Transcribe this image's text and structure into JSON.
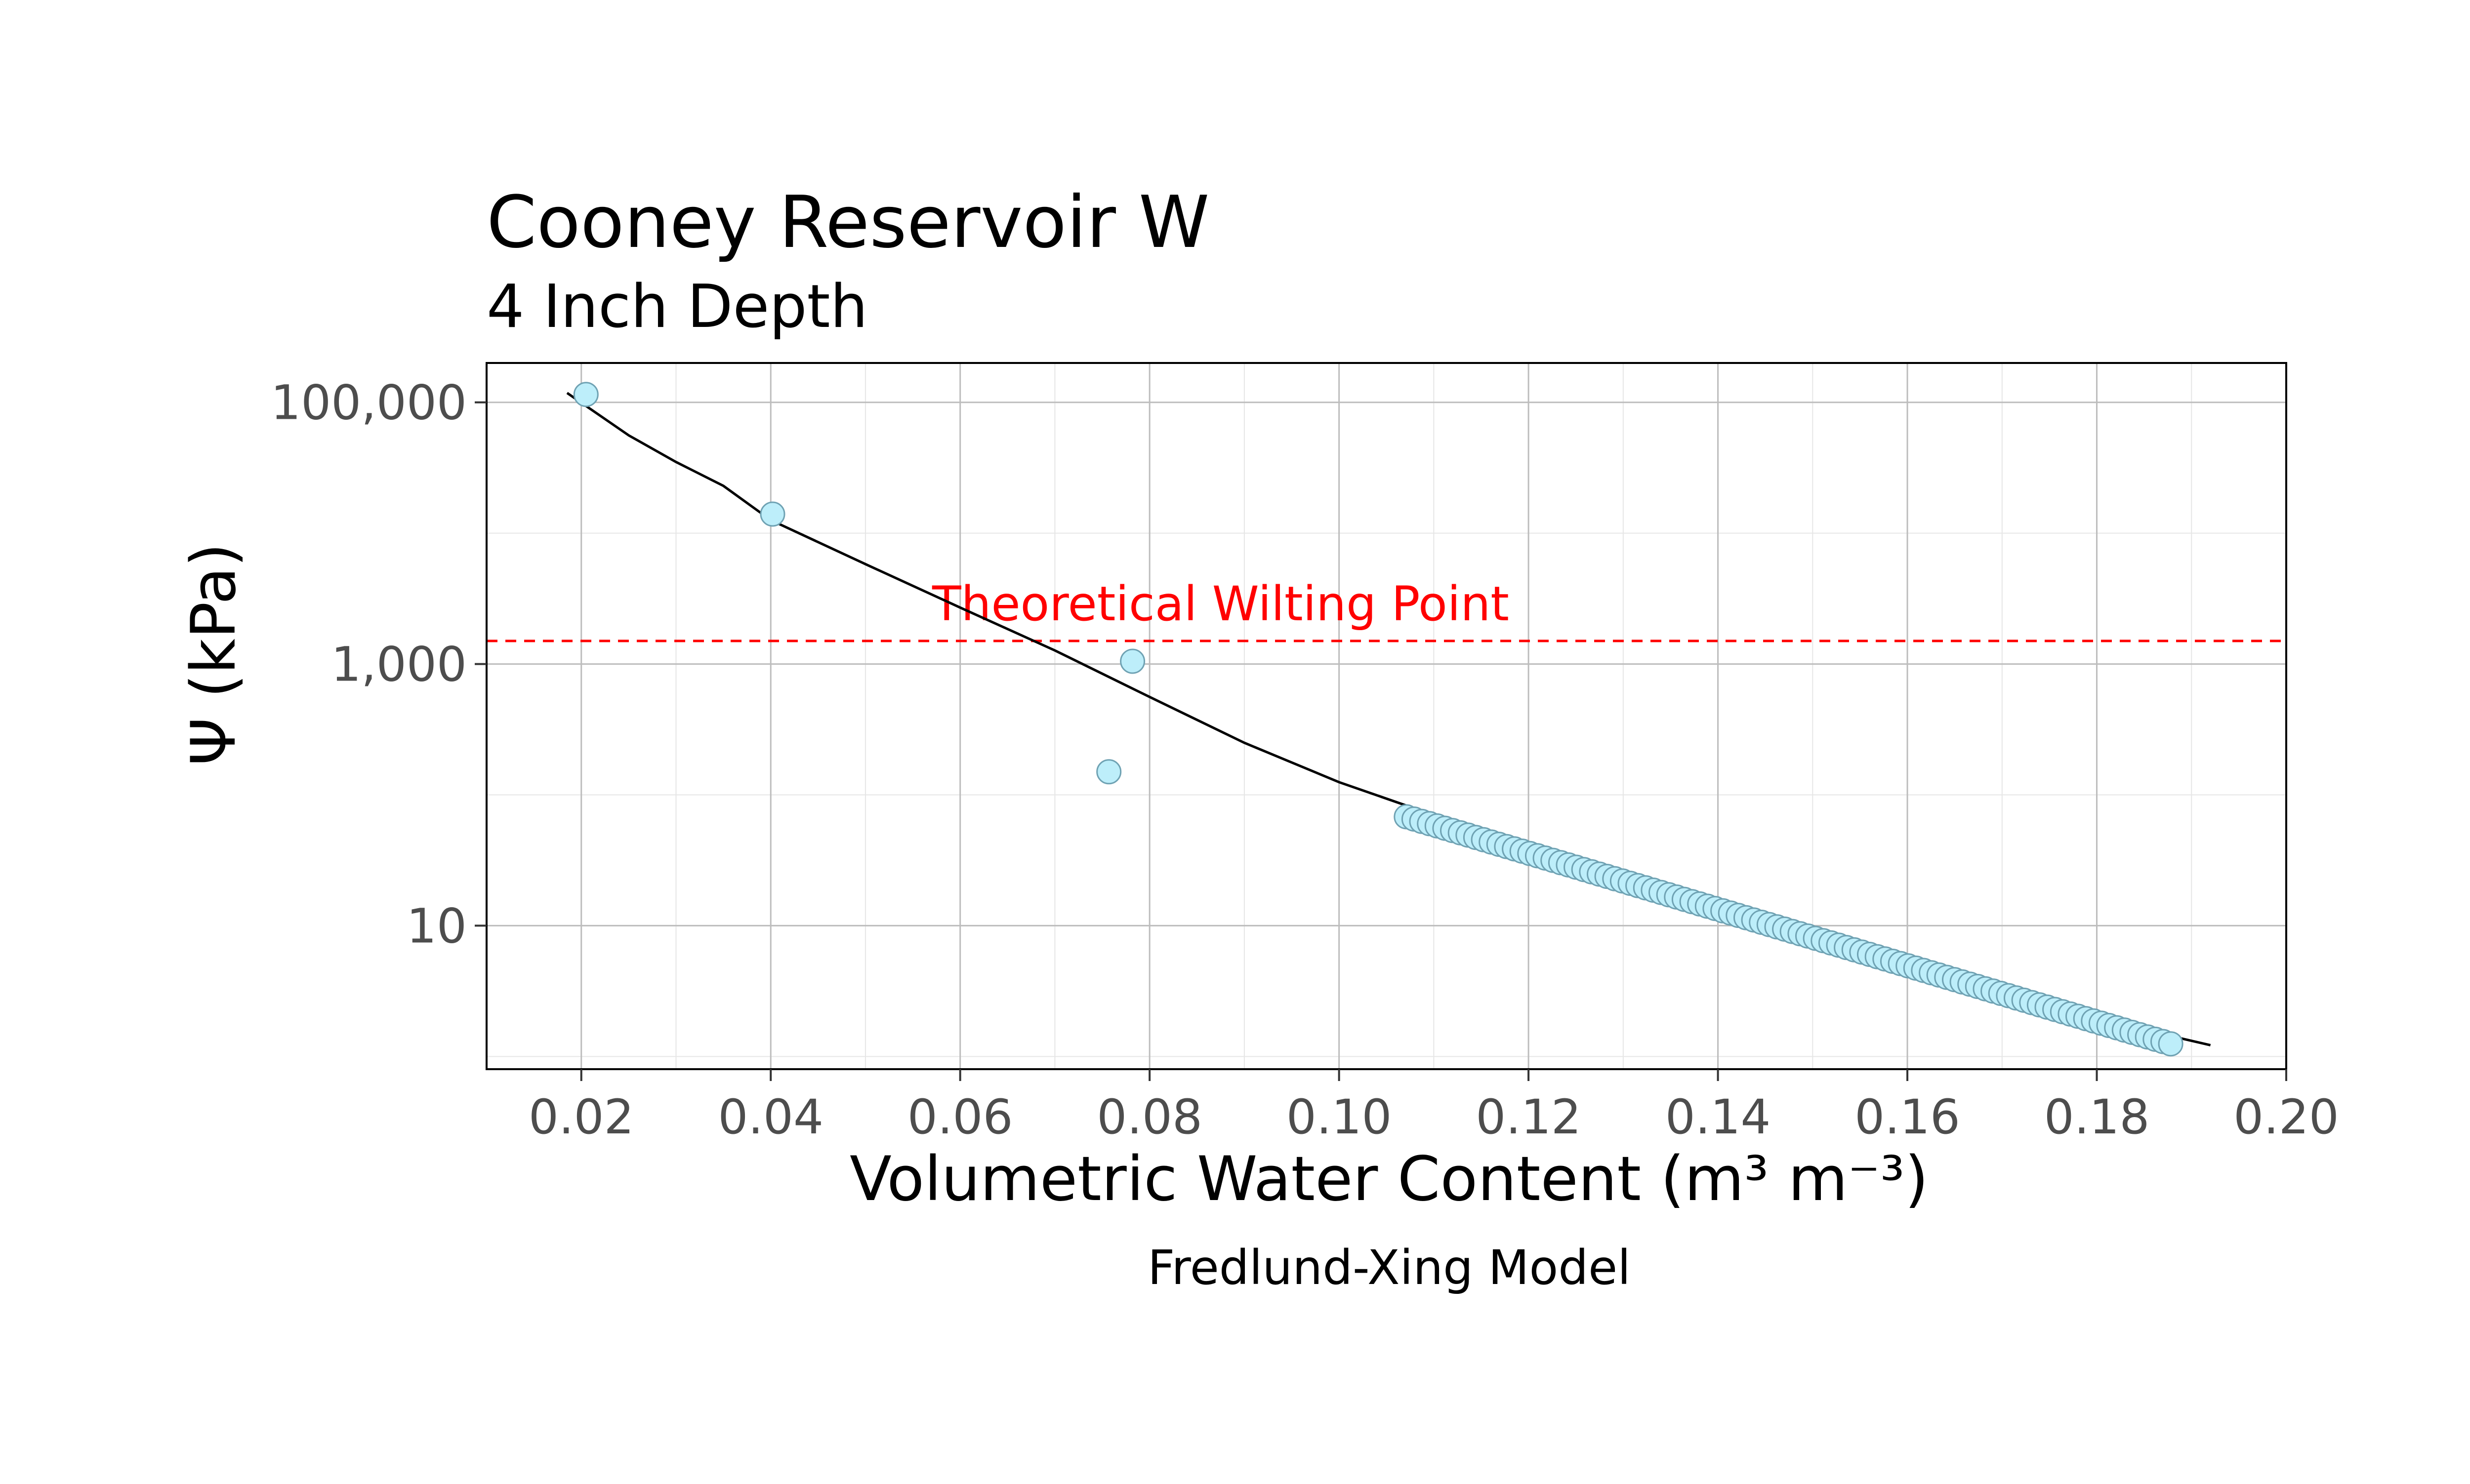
{
  "chart_data": {
    "type": "scatter",
    "title": "Cooney Reservoir W",
    "subtitle": "4 Inch Depth",
    "xlabel": "Volumetric Water Content (m³ m⁻³)",
    "ylabel": "Ψ (kPa)",
    "caption": "Fredlund-Xing Model",
    "x_scale": "linear",
    "y_scale": "log10",
    "xlim": [
      0.01,
      0.2
    ],
    "ylim": [
      0.8,
      200000
    ],
    "x_ticks": [
      0.02,
      0.04,
      0.06,
      0.08,
      0.1,
      0.12,
      0.14,
      0.16,
      0.18,
      0.2
    ],
    "x_tick_labels": [
      "0.02",
      "0.04",
      "0.06",
      "0.08",
      "0.10",
      "0.12",
      "0.14",
      "0.16",
      "0.18",
      "0.20"
    ],
    "y_ticks": [
      10,
      1000,
      100000
    ],
    "y_tick_labels": [
      "10",
      "1,000",
      "100,000"
    ],
    "y_minor_ticks": [
      1,
      100,
      10000
    ],
    "grid": true,
    "colors": {
      "point_fill": "#bdeefa",
      "point_stroke": "#6fa2b3",
      "fit_line": "#000000",
      "reference_line": "#ff0000",
      "annotation_text": "#ff0000"
    },
    "reference_line": {
      "y": 1500,
      "label": "Theoretical Wilting Point",
      "style": "dashed"
    },
    "observed_points": [
      {
        "x": 0.0205,
        "y": 115000
      },
      {
        "x": 0.0402,
        "y": 14000
      },
      {
        "x": 0.0782,
        "y": 1050
      },
      {
        "x": 0.0757,
        "y": 150
      }
    ],
    "dense_series": {
      "x_start": 0.1071,
      "x_end": 0.1878,
      "y_start": 68,
      "y_end": 1.25,
      "count": 100
    },
    "fit_curve": [
      [
        0.0185,
        118000
      ],
      [
        0.025,
        56000
      ],
      [
        0.03,
        35000
      ],
      [
        0.035,
        23000
      ],
      [
        0.04,
        12600
      ],
      [
        0.05,
        5800
      ],
      [
        0.06,
        2700
      ],
      [
        0.07,
        1270
      ],
      [
        0.08,
        560
      ],
      [
        0.09,
        250
      ],
      [
        0.1,
        125
      ],
      [
        0.11,
        70
      ],
      [
        0.12,
        40
      ],
      [
        0.13,
        25.2
      ],
      [
        0.14,
        15.9
      ],
      [
        0.15,
        9.6
      ],
      [
        0.16,
        5.6
      ],
      [
        0.17,
        3.6
      ],
      [
        0.18,
        2.2
      ],
      [
        0.185,
        1.6
      ],
      [
        0.192,
        1.22
      ]
    ]
  }
}
